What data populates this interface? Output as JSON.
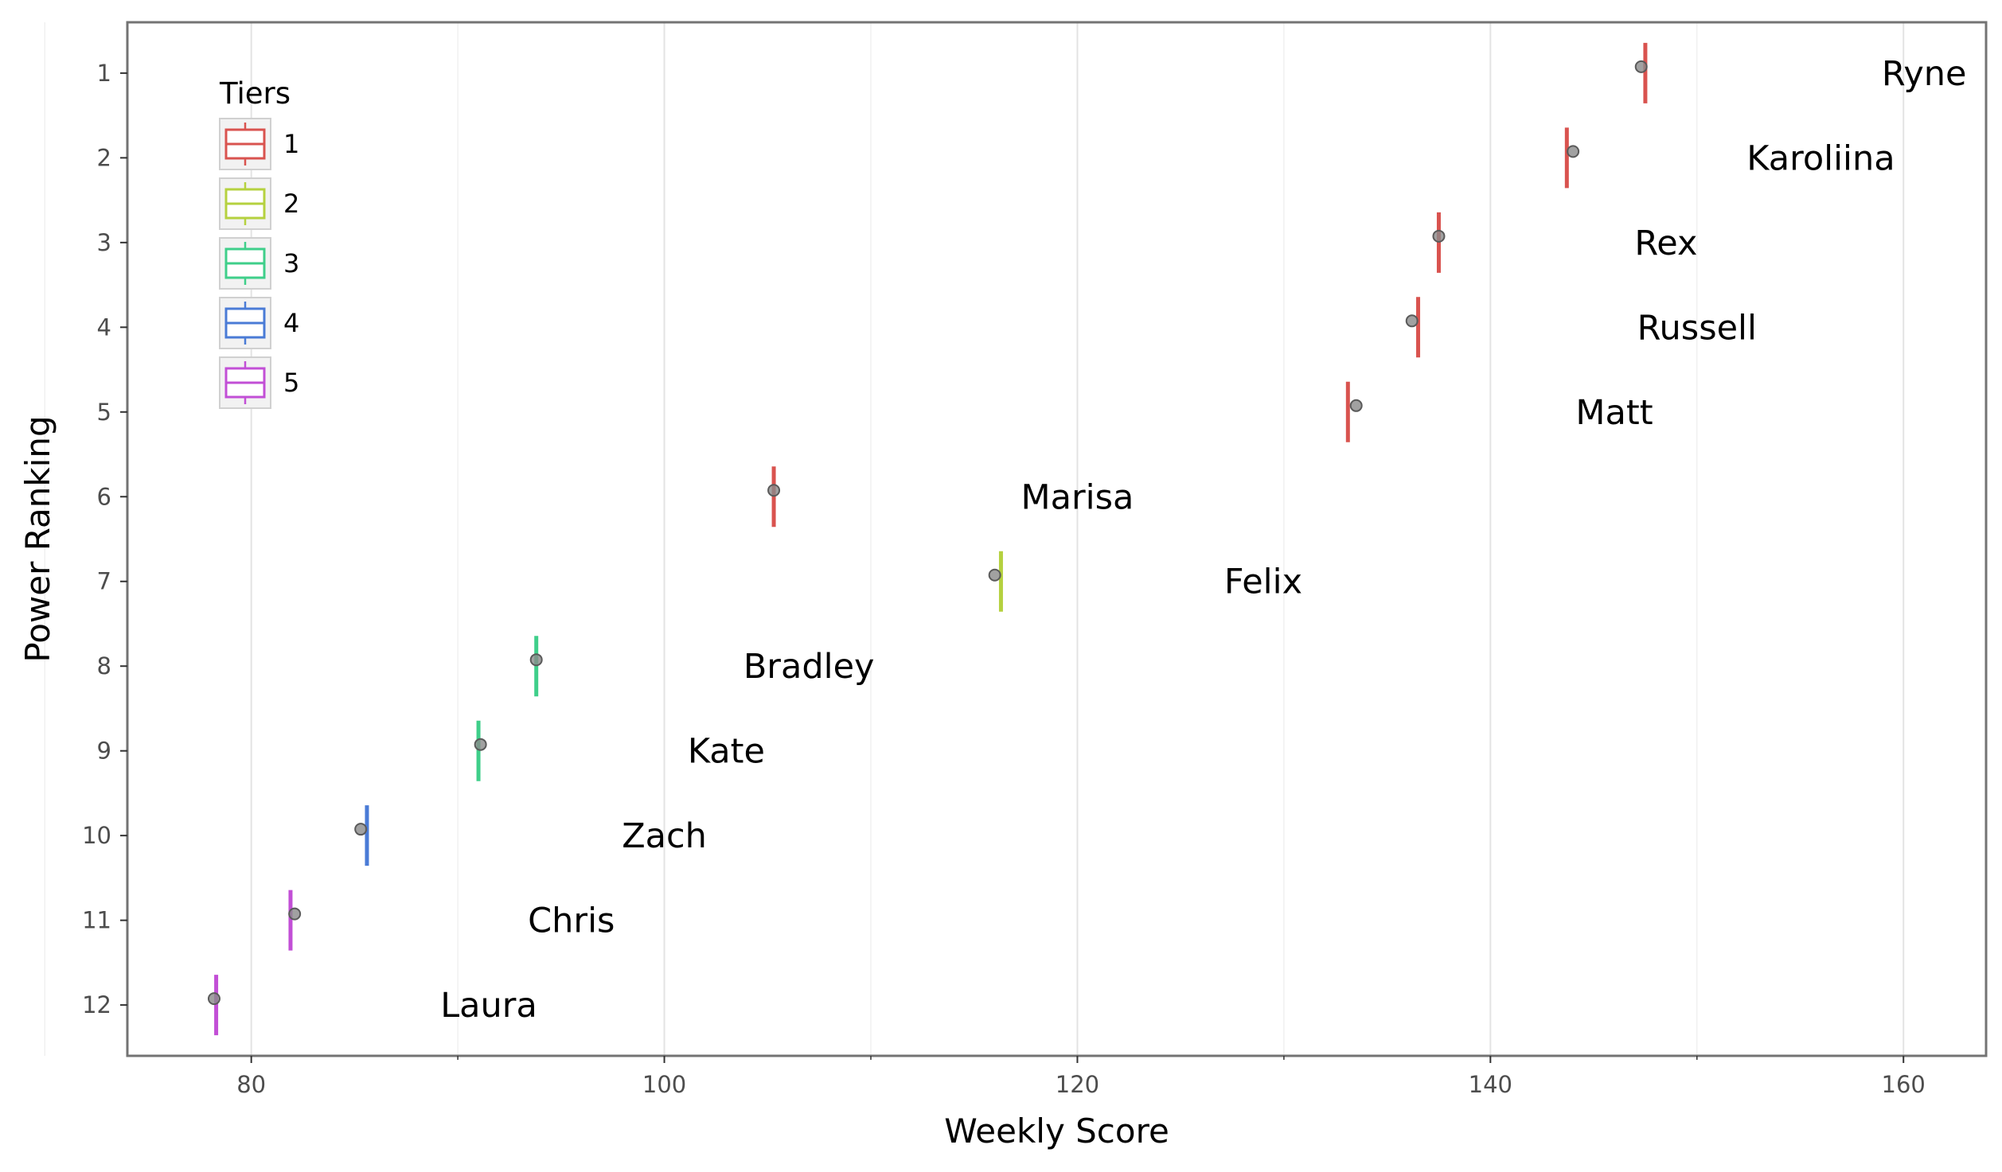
{
  "chart_data": {
    "type": "scatter",
    "xlabel": "Weekly Score",
    "ylabel": "Power Ranking",
    "xlim": [
      74,
      164
    ],
    "ylim": [
      12.6,
      0.4
    ],
    "x_ticks": [
      80,
      100,
      120,
      140,
      160
    ],
    "y_ticks": [
      1,
      2,
      3,
      4,
      5,
      6,
      7,
      8,
      9,
      10,
      11,
      12
    ],
    "grid": true,
    "legend": {
      "title": "Tiers",
      "placement": "top-left",
      "entries": [
        {
          "label": "1",
          "color": "#d9534f"
        },
        {
          "label": "2",
          "color": "#b5d13f"
        },
        {
          "label": "3",
          "color": "#3fcf8a"
        },
        {
          "label": "4",
          "color": "#4a7bd6"
        },
        {
          "label": "5",
          "color": "#c24fd6"
        }
      ]
    },
    "series": [
      {
        "label": "Ryne",
        "rank": 1,
        "score": 147.3,
        "tier_score": 147.5,
        "tier": "1"
      },
      {
        "label": "Karoliina",
        "rank": 2,
        "score": 144.0,
        "tier_score": 143.7,
        "tier": "1"
      },
      {
        "label": "Rex",
        "rank": 3,
        "score": 137.5,
        "tier_score": 137.5,
        "tier": "1"
      },
      {
        "label": "Russell",
        "rank": 4,
        "score": 136.2,
        "tier_score": 136.5,
        "tier": "1"
      },
      {
        "label": "Matt",
        "rank": 5,
        "score": 133.5,
        "tier_score": 133.1,
        "tier": "1"
      },
      {
        "label": "Marisa",
        "rank": 6,
        "score": 105.3,
        "tier_score": 105.3,
        "tier": "1"
      },
      {
        "label": "Felix",
        "rank": 7,
        "score": 116.0,
        "tier_score": 116.3,
        "tier": "2"
      },
      {
        "label": "Bradley",
        "rank": 8,
        "score": 93.8,
        "tier_score": 93.8,
        "tier": "3"
      },
      {
        "label": "Kate",
        "rank": 9,
        "score": 91.1,
        "tier_score": 91.0,
        "tier": "3"
      },
      {
        "label": "Zach",
        "rank": 10,
        "score": 85.3,
        "tier_score": 85.6,
        "tier": "4"
      },
      {
        "label": "Chris",
        "rank": 11,
        "score": 82.1,
        "tier_score": 81.9,
        "tier": "5"
      },
      {
        "label": "Laura",
        "rank": 12,
        "score": 78.2,
        "tier_score": 78.3,
        "tier": "5"
      }
    ],
    "label_x": [
      161,
      156,
      148.5,
      150,
      146,
      120,
      129,
      107,
      103,
      100,
      95.5,
      91.5
    ]
  }
}
